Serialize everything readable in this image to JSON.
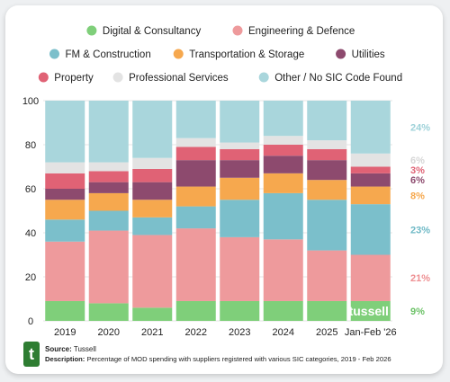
{
  "chart_data": {
    "type": "bar",
    "stacked": true,
    "categories": [
      "2019",
      "2020",
      "2021",
      "2022",
      "2023",
      "2024",
      "2025",
      "Jan-Feb '26"
    ],
    "ylim": [
      0,
      100
    ],
    "yticks": [
      0,
      20,
      40,
      60,
      80,
      100
    ],
    "grid": true,
    "legend_position": "top",
    "series": [
      {
        "name": "Digital & Consultancy",
        "color": "#7fcf7a",
        "values": [
          9,
          8,
          6,
          9,
          9,
          9,
          9,
          9
        ]
      },
      {
        "name": "Engineering & Defence",
        "color": "#ee9a9c",
        "values": [
          27,
          33,
          33,
          33,
          29,
          28,
          23,
          21
        ]
      },
      {
        "name": "FM & Construction",
        "color": "#7bbfcb",
        "values": [
          10,
          9,
          8,
          10,
          17,
          21,
          23,
          23
        ]
      },
      {
        "name": "Transportation & Storage",
        "color": "#f6a84e",
        "values": [
          9,
          8,
          8,
          9,
          10,
          9,
          9,
          8
        ]
      },
      {
        "name": "Utilities",
        "color": "#8d4a6e",
        "values": [
          5,
          5,
          8,
          12,
          8,
          8,
          9,
          6
        ]
      },
      {
        "name": "Property",
        "color": "#e06275",
        "values": [
          7,
          5,
          6,
          6,
          5,
          5,
          5,
          3
        ]
      },
      {
        "name": "Professional Services",
        "color": "#e3e3e3",
        "values": [
          5,
          4,
          5,
          4,
          3,
          4,
          4,
          6
        ]
      },
      {
        "name": "Other / No SIC Code Found",
        "color": "#a9d6dc",
        "values": [
          28,
          28,
          26,
          17,
          19,
          16,
          18,
          24
        ]
      }
    ],
    "end_labels": [
      {
        "series": "Other / No SIC Code Found",
        "text": "24%",
        "color": "#9ed2d9"
      },
      {
        "series": "Professional Services",
        "text": "6%",
        "color": "#d6d6d6"
      },
      {
        "series": "Property",
        "text": "3%",
        "color": "#e06275"
      },
      {
        "series": "Utilities",
        "text": "6%",
        "color": "#8d4a6e"
      },
      {
        "series": "Transportation & Storage",
        "text": "8%",
        "color": "#f6a84e"
      },
      {
        "series": "FM & Construction",
        "text": "23%",
        "color": "#6fb9c6"
      },
      {
        "series": "Engineering & Defence",
        "text": "21%",
        "color": "#ee8f92"
      },
      {
        "series": "Digital & Consultancy",
        "text": "9%",
        "color": "#6cc267"
      }
    ],
    "watermark": "tussell"
  },
  "footer": {
    "source_label": "Source:",
    "source_text": "Tussell",
    "description_label": "Description:",
    "description_text": "Percentage of MOD spending with suppliers registered with various SIC categories, 2019 - Feb 2026"
  }
}
